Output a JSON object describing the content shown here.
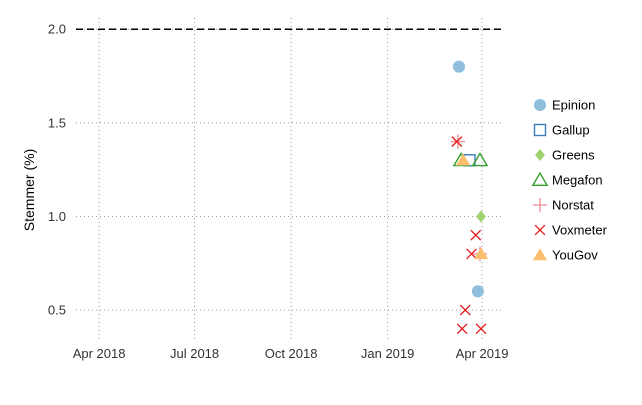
{
  "chart_data": {
    "type": "scatter",
    "ylabel": "Stemmer (%)",
    "xlabel": "",
    "x_ticks": [
      "2018-04-01",
      "2018-07-01",
      "2018-10-01",
      "2019-01-01",
      "2019-04-01"
    ],
    "x_tick_labels": [
      "Apr 2018",
      "Jul 2018",
      "Oct 2018",
      "Jan 2019",
      "Apr 2019"
    ],
    "y_ticks": [
      0.5,
      1.0,
      1.5,
      2.0
    ],
    "y_tick_labels": [
      "0.5",
      "1.0",
      "1.5",
      "2.0"
    ],
    "xlim": [
      "2018-03-10",
      "2019-04-20"
    ],
    "ylim": [
      0.34,
      2.06
    ],
    "grid": true,
    "reference_line": {
      "y": 2.0,
      "style": "dashed"
    },
    "legend_position": "right",
    "series": [
      {
        "name": "Epinion",
        "marker": "circle",
        "color": "#8fbfdd",
        "points": [
          {
            "x": "2019-03-10",
            "y": 1.8
          },
          {
            "x": "2019-03-28",
            "y": 0.6
          }
        ]
      },
      {
        "name": "Gallup",
        "marker": "square-open",
        "color": "#3a7ebf",
        "points": [
          {
            "x": "2019-03-20",
            "y": 1.3
          }
        ]
      },
      {
        "name": "Greens",
        "marker": "diamond",
        "color": "#9fd36f",
        "points": [
          {
            "x": "2019-03-31",
            "y": 1.0
          }
        ]
      },
      {
        "name": "Megafon",
        "marker": "triangle-open",
        "color": "#33a02c",
        "points": [
          {
            "x": "2019-03-12",
            "y": 1.3
          },
          {
            "x": "2019-03-30",
            "y": 1.3
          }
        ]
      },
      {
        "name": "Norstat",
        "marker": "plus",
        "color": "#f08c96",
        "points": [
          {
            "x": "2019-03-09",
            "y": 1.4
          },
          {
            "x": "2019-03-30",
            "y": 0.8
          }
        ]
      },
      {
        "name": "Voxmeter",
        "marker": "x",
        "color": "#e31a1c",
        "points": [
          {
            "x": "2019-03-08",
            "y": 1.4
          },
          {
            "x": "2019-03-13",
            "y": 0.4
          },
          {
            "x": "2019-03-16",
            "y": 0.5
          },
          {
            "x": "2019-03-22",
            "y": 0.8
          },
          {
            "x": "2019-03-26",
            "y": 0.9
          },
          {
            "x": "2019-03-31",
            "y": 0.4
          }
        ]
      },
      {
        "name": "YouGov",
        "marker": "triangle",
        "color": "#fdbf6f",
        "points": [
          {
            "x": "2019-03-14",
            "y": 1.3
          },
          {
            "x": "2019-03-31",
            "y": 0.8
          }
        ]
      }
    ]
  }
}
